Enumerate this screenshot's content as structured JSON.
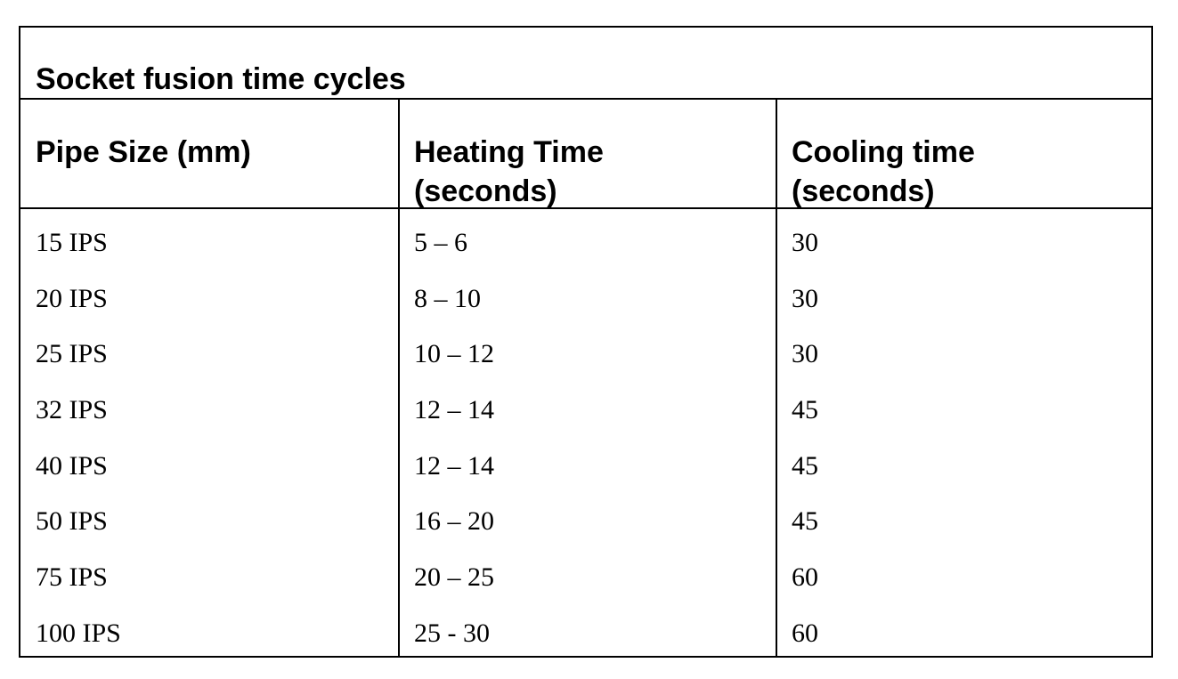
{
  "table": {
    "title": "Socket fusion time cycles",
    "columns": [
      "Pipe Size (mm)",
      "Heating Time\n(seconds)",
      "Cooling time\n(seconds)"
    ],
    "rows": [
      [
        "15 IPS",
        "5 – 6",
        "30"
      ],
      [
        "20 IPS",
        "8 – 10",
        "30"
      ],
      [
        "25 IPS",
        "10 – 12",
        "30"
      ],
      [
        "32 IPS",
        "12 – 14",
        "45"
      ],
      [
        "40 IPS",
        "12 – 14",
        "45"
      ],
      [
        "50 IPS",
        "16 – 20",
        "45"
      ],
      [
        "75 IPS",
        "20 – 25",
        "60"
      ],
      [
        "100 IPS",
        "25 - 30",
        "60"
      ]
    ]
  }
}
